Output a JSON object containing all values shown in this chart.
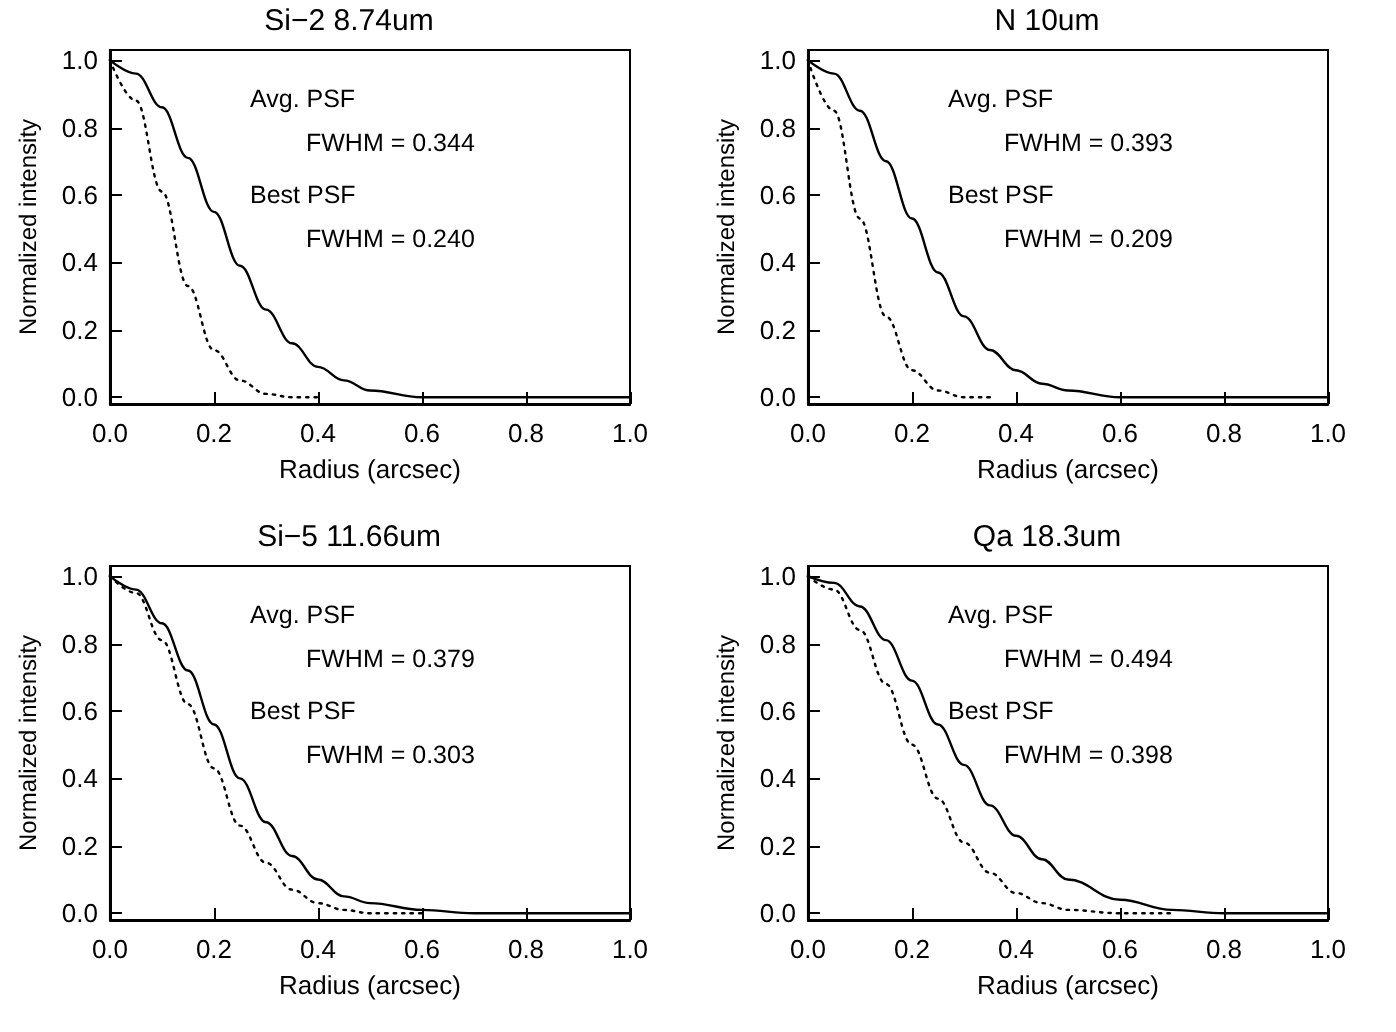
{
  "chart_data": [
    {
      "type": "line",
      "title": "Si−2 8.74um",
      "xlabel": "Radius (arcsec)",
      "ylabel": "Normalized intensity",
      "xlim": [
        0,
        1
      ],
      "ylim": [
        -0.02,
        1.03
      ],
      "xticks": [
        {
          "value": 0,
          "label": "0.0"
        },
        {
          "value": 0.2,
          "label": "0.2"
        },
        {
          "value": 0.4,
          "label": "0.4"
        },
        {
          "value": 0.6,
          "label": "0.6"
        },
        {
          "value": 0.8,
          "label": "0.8"
        },
        {
          "value": 1,
          "label": "1.0"
        }
      ],
      "yticks": [
        {
          "value": 0,
          "label": "0.0"
        },
        {
          "value": 0.2,
          "label": "0.2"
        },
        {
          "value": 0.4,
          "label": "0.4"
        },
        {
          "value": 0.6,
          "label": "0.6"
        },
        {
          "value": 0.8,
          "label": "0.8"
        },
        {
          "value": 1,
          "label": "1.0"
        }
      ],
      "marker": "none",
      "annotations": [
        "Avg. PSF",
        "FWHM = 0.344",
        "Best PSF",
        "FWHM = 0.240"
      ],
      "series": [
        {
          "color": "#000000",
          "line_style": "solid",
          "x": [
            0,
            0.05,
            0.1,
            0.15,
            0.2,
            0.25,
            0.3,
            0.35,
            0.4,
            0.45,
            0.5,
            0.6,
            0.7,
            1
          ],
          "values": [
            1,
            0.96,
            0.86,
            0.71,
            0.55,
            0.39,
            0.26,
            0.16,
            0.09,
            0.05,
            0.02,
            0,
            0,
            0
          ]
        },
        {
          "color": "#000000",
          "line_style": "dotted",
          "x": [
            0,
            0.05,
            0.1,
            0.15,
            0.2,
            0.25,
            0.3,
            0.35,
            0.4
          ],
          "values": [
            1,
            0.88,
            0.61,
            0.33,
            0.14,
            0.05,
            0.01,
            0,
            0
          ]
        }
      ]
    },
    {
      "type": "line",
      "title": "N 10um",
      "xlabel": "Radius (arcsec)",
      "ylabel": "Normalized intensity",
      "xlim": [
        0,
        1
      ],
      "ylim": [
        -0.02,
        1.03
      ],
      "xticks": [
        {
          "value": 0,
          "label": "0.0"
        },
        {
          "value": 0.2,
          "label": "0.2"
        },
        {
          "value": 0.4,
          "label": "0.4"
        },
        {
          "value": 0.6,
          "label": "0.6"
        },
        {
          "value": 0.8,
          "label": "0.8"
        },
        {
          "value": 1,
          "label": "1.0"
        }
      ],
      "yticks": [
        {
          "value": 0,
          "label": "0.0"
        },
        {
          "value": 0.2,
          "label": "0.2"
        },
        {
          "value": 0.4,
          "label": "0.4"
        },
        {
          "value": 0.6,
          "label": "0.6"
        },
        {
          "value": 0.8,
          "label": "0.8"
        },
        {
          "value": 1,
          "label": "1.0"
        }
      ],
      "marker": "none",
      "annotations": [
        "Avg. PSF",
        "FWHM = 0.393",
        "Best PSF",
        "FWHM = 0.209"
      ],
      "series": [
        {
          "color": "#000000",
          "line_style": "solid",
          "x": [
            0,
            0.05,
            0.1,
            0.15,
            0.2,
            0.25,
            0.3,
            0.35,
            0.4,
            0.45,
            0.5,
            0.6,
            0.7,
            1
          ],
          "values": [
            1,
            0.96,
            0.85,
            0.7,
            0.53,
            0.37,
            0.24,
            0.14,
            0.08,
            0.04,
            0.02,
            0,
            0,
            0
          ]
        },
        {
          "color": "#000000",
          "line_style": "dotted",
          "x": [
            0,
            0.05,
            0.1,
            0.15,
            0.2,
            0.25,
            0.3,
            0.35
          ],
          "values": [
            1,
            0.85,
            0.53,
            0.24,
            0.08,
            0.02,
            0,
            0
          ]
        }
      ]
    },
    {
      "type": "line",
      "title": "Si−5 11.66um",
      "xlabel": "Radius (arcsec)",
      "ylabel": "Normalized intensity",
      "xlim": [
        0,
        1
      ],
      "ylim": [
        -0.02,
        1.03
      ],
      "xticks": [
        {
          "value": 0,
          "label": "0.0"
        },
        {
          "value": 0.2,
          "label": "0.2"
        },
        {
          "value": 0.4,
          "label": "0.4"
        },
        {
          "value": 0.6,
          "label": "0.6"
        },
        {
          "value": 0.8,
          "label": "0.8"
        },
        {
          "value": 1,
          "label": "1.0"
        }
      ],
      "yticks": [
        {
          "value": 0,
          "label": "0.0"
        },
        {
          "value": 0.2,
          "label": "0.2"
        },
        {
          "value": 0.4,
          "label": "0.4"
        },
        {
          "value": 0.6,
          "label": "0.6"
        },
        {
          "value": 0.8,
          "label": "0.8"
        },
        {
          "value": 1,
          "label": "1.0"
        }
      ],
      "marker": "none",
      "annotations": [
        "Avg. PSF",
        "FWHM = 0.379",
        "Best PSF",
        "FWHM = 0.303"
      ],
      "series": [
        {
          "color": "#000000",
          "line_style": "solid",
          "x": [
            0,
            0.05,
            0.1,
            0.15,
            0.2,
            0.25,
            0.3,
            0.35,
            0.4,
            0.45,
            0.5,
            0.6,
            0.7,
            1
          ],
          "values": [
            1,
            0.96,
            0.86,
            0.72,
            0.56,
            0.4,
            0.27,
            0.17,
            0.1,
            0.05,
            0.03,
            0.01,
            0,
            0
          ]
        },
        {
          "color": "#000000",
          "line_style": "dotted",
          "x": [
            0,
            0.05,
            0.1,
            0.15,
            0.2,
            0.25,
            0.3,
            0.35,
            0.4,
            0.45,
            0.5,
            0.6
          ],
          "values": [
            1,
            0.95,
            0.81,
            0.62,
            0.43,
            0.26,
            0.15,
            0.07,
            0.03,
            0.01,
            0,
            0
          ]
        }
      ]
    },
    {
      "type": "line",
      "title": "Qa 18.3um",
      "xlabel": "Radius (arcsec)",
      "ylabel": "Normalized intensity",
      "xlim": [
        0,
        1
      ],
      "ylim": [
        -0.02,
        1.03
      ],
      "xticks": [
        {
          "value": 0,
          "label": "0.0"
        },
        {
          "value": 0.2,
          "label": "0.2"
        },
        {
          "value": 0.4,
          "label": "0.4"
        },
        {
          "value": 0.6,
          "label": "0.6"
        },
        {
          "value": 0.8,
          "label": "0.8"
        },
        {
          "value": 1,
          "label": "1.0"
        }
      ],
      "yticks": [
        {
          "value": 0,
          "label": "0.0"
        },
        {
          "value": 0.2,
          "label": "0.2"
        },
        {
          "value": 0.4,
          "label": "0.4"
        },
        {
          "value": 0.6,
          "label": "0.6"
        },
        {
          "value": 0.8,
          "label": "0.8"
        },
        {
          "value": 1,
          "label": "1.0"
        }
      ],
      "marker": "none",
      "annotations": [
        "Avg. PSF",
        "FWHM = 0.494",
        "Best PSF",
        "FWHM = 0.398"
      ],
      "series": [
        {
          "color": "#000000",
          "line_style": "solid",
          "x": [
            0,
            0.05,
            0.1,
            0.15,
            0.2,
            0.25,
            0.3,
            0.35,
            0.4,
            0.45,
            0.5,
            0.6,
            0.7,
            0.8,
            1
          ],
          "values": [
            1,
            0.98,
            0.91,
            0.81,
            0.69,
            0.56,
            0.44,
            0.32,
            0.23,
            0.16,
            0.1,
            0.04,
            0.01,
            0,
            0
          ]
        },
        {
          "color": "#000000",
          "line_style": "dotted",
          "x": [
            0,
            0.05,
            0.1,
            0.15,
            0.2,
            0.25,
            0.3,
            0.35,
            0.4,
            0.45,
            0.5,
            0.6,
            0.7
          ],
          "values": [
            1,
            0.96,
            0.84,
            0.68,
            0.5,
            0.34,
            0.21,
            0.12,
            0.06,
            0.03,
            0.01,
            0,
            0
          ]
        }
      ]
    }
  ]
}
